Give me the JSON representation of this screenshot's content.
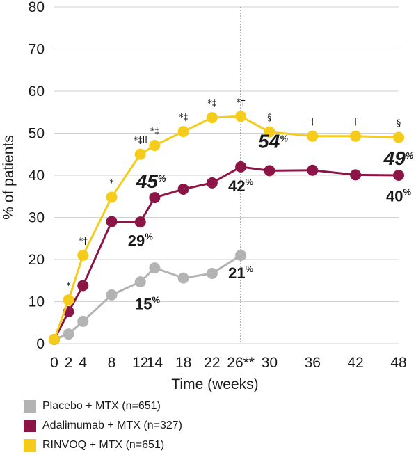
{
  "chart_data": {
    "type": "line",
    "xlabel": "Time (weeks)",
    "ylabel": "% of patients",
    "ylim": [
      0,
      80
    ],
    "xlim": [
      0,
      48
    ],
    "yticks": [
      0,
      10,
      20,
      30,
      40,
      50,
      60,
      70,
      80
    ],
    "xticks": [
      0,
      2,
      4,
      8,
      12,
      14,
      18,
      22,
      26,
      30,
      36,
      42,
      48
    ],
    "xtick_labels": [
      "0",
      "2",
      "4",
      "8",
      "12",
      "14",
      "18",
      "22",
      "26**",
      "30",
      "36",
      "42",
      "48"
    ],
    "grid": "horizontal",
    "reference_line_x": 26,
    "series": [
      {
        "name": "Placebo + MTX (n=651)",
        "color": "#b3b3b3",
        "x": [
          0,
          2,
          4,
          8,
          12,
          14,
          18,
          22,
          26
        ],
        "values": [
          1,
          2.3,
          5.3,
          11.6,
          14.7,
          18,
          15.6,
          16.7,
          21
        ]
      },
      {
        "name": "Adalimumab + MTX (n=327)",
        "color": "#8c1548",
        "x": [
          0,
          2,
          4,
          8,
          12,
          14,
          18,
          22,
          26,
          30,
          36,
          42,
          48
        ],
        "values": [
          1,
          7.6,
          13.8,
          29,
          28.9,
          34.7,
          36.7,
          38.2,
          42,
          41.1,
          41.2,
          40.1,
          40
        ]
      },
      {
        "name": "RINVOQ + MTX (n=651)",
        "color": "#f5cc1c",
        "x": [
          0,
          2,
          4,
          8,
          12,
          14,
          18,
          22,
          26,
          30,
          36,
          42,
          48
        ],
        "values": [
          1,
          10.4,
          21,
          34.8,
          45,
          47.1,
          50.4,
          53.7,
          54,
          50.3,
          49.3,
          49.3,
          49
        ]
      }
    ],
    "significance_markers": [
      {
        "x": 2,
        "y": 10.4,
        "text": "*"
      },
      {
        "x": 4,
        "y": 21,
        "text": "*†"
      },
      {
        "x": 8,
        "y": 34.8,
        "text": "*"
      },
      {
        "x": 12,
        "y": 45,
        "text": "*‡ll"
      },
      {
        "x": 14,
        "y": 47.1,
        "text": "*‡"
      },
      {
        "x": 18,
        "y": 50.4,
        "text": "*‡"
      },
      {
        "x": 22,
        "y": 53.7,
        "text": "*‡"
      },
      {
        "x": 26,
        "y": 54,
        "text": "*‡"
      },
      {
        "x": 30,
        "y": 50.3,
        "text": "§"
      },
      {
        "x": 36,
        "y": 49.3,
        "text": "†"
      },
      {
        "x": 42,
        "y": 49.3,
        "text": "†"
      },
      {
        "x": 48,
        "y": 49,
        "text": "§"
      }
    ],
    "data_labels": [
      {
        "value": "45",
        "suffix": "%",
        "x": 13.5,
        "y": 37,
        "style": "big"
      },
      {
        "value": "54",
        "suffix": "%",
        "x": 30.5,
        "y": 46.5,
        "style": "big"
      },
      {
        "value": "49",
        "suffix": "%",
        "x": 48.0,
        "y": 42.5,
        "style": "big"
      },
      {
        "value": "42",
        "suffix": "%",
        "x": 26.0,
        "y": 36.2,
        "style": "normal"
      },
      {
        "value": "29",
        "suffix": "%",
        "x": 12.0,
        "y": 23.2,
        "style": "normal"
      },
      {
        "value": "40",
        "suffix": "%",
        "x": 48.0,
        "y": 33.8,
        "style": "normal"
      },
      {
        "value": "21",
        "suffix": "%",
        "x": 26.0,
        "y": 15.5,
        "style": "normal"
      },
      {
        "value": "15",
        "suffix": "%",
        "x": 13.0,
        "y": 8.2,
        "style": "normal"
      }
    ]
  },
  "legend": [
    {
      "label": "Placebo + MTX (n=651)",
      "color": "#b3b3b3"
    },
    {
      "label": "Adalimumab + MTX (n=327)",
      "color": "#8c1548"
    },
    {
      "label": "RINVOQ + MTX (n=651)",
      "color": "#f5cc1c"
    }
  ]
}
